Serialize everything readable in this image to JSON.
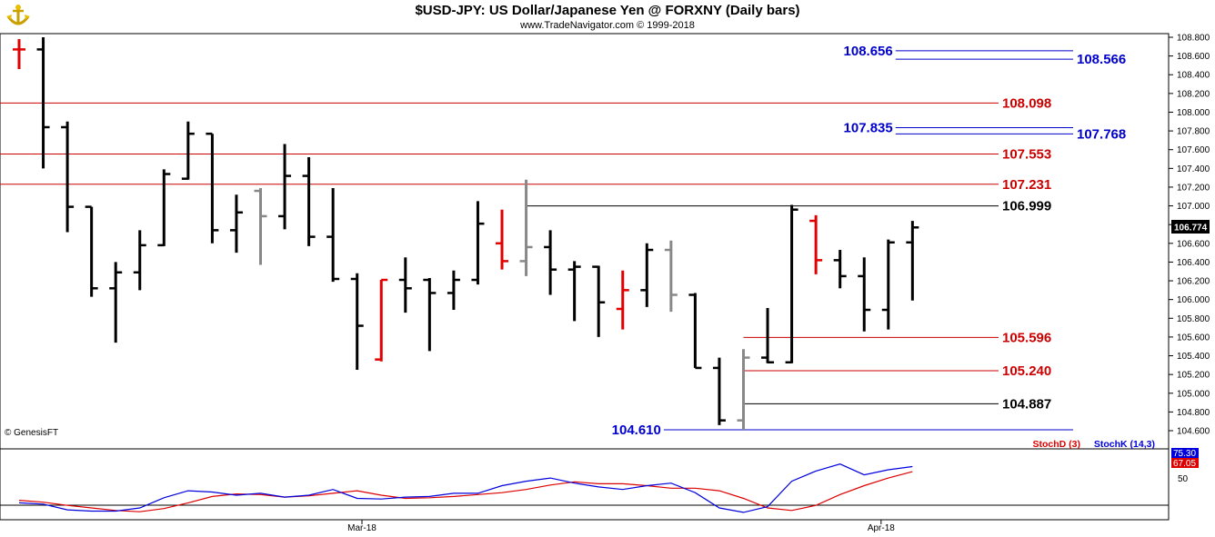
{
  "header": {
    "title": "$USD-JPY:  US Dollar/Japanese Yen @ FORXNY  (Daily bars)",
    "subtitle": "www.TradeNavigator.com © 1999-2018"
  },
  "copyright": "© GenesisFT",
  "colors": {
    "bar_black": "#000000",
    "bar_red": "#e00000",
    "bar_gray": "#888888",
    "level_red": "#cc0000",
    "level_blue": "#0000cc",
    "level_black": "#000000",
    "stoch_d": "#dd0000",
    "stoch_k": "#0000dd"
  },
  "chart_data": [
    {
      "type": "ohlc",
      "title": "$USD-JPY:  US Dollar/Japanese Yen @ FORXNY  (Daily bars)",
      "ylim": [
        104.48,
        108.9
      ],
      "y_ticks": [
        "108.800",
        "108.600",
        "108.400",
        "108.200",
        "108.000",
        "107.800",
        "107.600",
        "107.400",
        "107.200",
        "107.000",
        "106.800",
        "106.600",
        "106.400",
        "106.200",
        "106.000",
        "105.800",
        "105.600",
        "105.400",
        "105.200",
        "105.000",
        "104.800",
        "104.600"
      ],
      "x_labels": [
        "Mar-18",
        "Apr-18"
      ],
      "last_price": "106.774",
      "bars": [
        {
          "o": 108.67,
          "h": 108.78,
          "l": 108.46,
          "c": 108.67,
          "color": "red"
        },
        {
          "o": 108.67,
          "h": 108.8,
          "l": 107.4,
          "c": 107.84,
          "color": "black"
        },
        {
          "o": 107.84,
          "h": 107.9,
          "l": 106.72,
          "c": 106.99,
          "color": "black"
        },
        {
          "o": 106.99,
          "h": 106.99,
          "l": 106.03,
          "c": 106.12,
          "color": "black"
        },
        {
          "o": 106.12,
          "h": 106.4,
          "l": 105.54,
          "c": 106.29,
          "color": "black"
        },
        {
          "o": 106.29,
          "h": 106.74,
          "l": 106.1,
          "c": 106.58,
          "color": "black"
        },
        {
          "o": 106.58,
          "h": 107.39,
          "l": 106.57,
          "c": 107.34,
          "color": "black"
        },
        {
          "o": 107.29,
          "h": 107.9,
          "l": 107.28,
          "c": 107.77,
          "color": "black"
        },
        {
          "o": 107.77,
          "h": 107.77,
          "l": 106.6,
          "c": 106.74,
          "color": "black"
        },
        {
          "o": 106.74,
          "h": 107.12,
          "l": 106.5,
          "c": 106.93,
          "color": "black"
        },
        {
          "o": 107.16,
          "h": 107.19,
          "l": 106.37,
          "c": 106.89,
          "color": "gray"
        },
        {
          "o": 106.89,
          "h": 107.66,
          "l": 106.75,
          "c": 107.32,
          "color": "black"
        },
        {
          "o": 107.32,
          "h": 107.52,
          "l": 106.57,
          "c": 106.67,
          "color": "black"
        },
        {
          "o": 106.67,
          "h": 107.19,
          "l": 106.19,
          "c": 106.22,
          "color": "black"
        },
        {
          "o": 106.22,
          "h": 106.28,
          "l": 105.25,
          "c": 105.72,
          "color": "black"
        },
        {
          "o": 105.36,
          "h": 106.21,
          "l": 105.34,
          "c": 106.21,
          "color": "red"
        },
        {
          "o": 106.21,
          "h": 106.45,
          "l": 105.86,
          "c": 106.12,
          "color": "black"
        },
        {
          "o": 106.21,
          "h": 106.23,
          "l": 105.45,
          "c": 106.07,
          "color": "black"
        },
        {
          "o": 106.07,
          "h": 106.31,
          "l": 105.89,
          "c": 106.21,
          "color": "black"
        },
        {
          "o": 106.21,
          "h": 107.05,
          "l": 106.16,
          "c": 106.81,
          "color": "black"
        },
        {
          "o": 106.6,
          "h": 106.96,
          "l": 106.32,
          "c": 106.41,
          "color": "red"
        },
        {
          "o": 106.41,
          "h": 107.28,
          "l": 106.25,
          "c": 106.56,
          "color": "gray"
        },
        {
          "o": 106.56,
          "h": 106.74,
          "l": 106.05,
          "c": 106.32,
          "color": "black"
        },
        {
          "o": 106.32,
          "h": 106.41,
          "l": 105.77,
          "c": 106.35,
          "color": "black"
        },
        {
          "o": 106.35,
          "h": 106.36,
          "l": 105.6,
          "c": 105.97,
          "color": "black"
        },
        {
          "o": 105.9,
          "h": 106.31,
          "l": 105.68,
          "c": 106.1,
          "color": "red"
        },
        {
          "o": 106.1,
          "h": 106.6,
          "l": 105.92,
          "c": 106.53,
          "color": "black"
        },
        {
          "o": 106.53,
          "h": 106.63,
          "l": 105.87,
          "c": 106.05,
          "color": "gray"
        },
        {
          "o": 106.05,
          "h": 106.07,
          "l": 105.27,
          "c": 105.27,
          "color": "black"
        },
        {
          "o": 105.27,
          "h": 105.38,
          "l": 104.66,
          "c": 104.71,
          "color": "black"
        },
        {
          "o": 104.71,
          "h": 105.47,
          "l": 104.61,
          "c": 105.38,
          "color": "gray"
        },
        {
          "o": 105.38,
          "h": 105.91,
          "l": 105.32,
          "c": 105.33,
          "color": "black"
        },
        {
          "o": 105.33,
          "h": 107.01,
          "l": 105.32,
          "c": 106.96,
          "color": "black"
        },
        {
          "o": 106.84,
          "h": 106.9,
          "l": 106.27,
          "c": 106.42,
          "color": "red"
        },
        {
          "o": 106.42,
          "h": 106.53,
          "l": 106.12,
          "c": 106.25,
          "color": "black"
        },
        {
          "o": 106.25,
          "h": 106.45,
          "l": 105.66,
          "c": 105.89,
          "color": "black"
        },
        {
          "o": 105.89,
          "h": 106.64,
          "l": 105.68,
          "c": 106.61,
          "color": "black"
        },
        {
          "o": 106.61,
          "h": 106.84,
          "l": 105.99,
          "c": 106.77,
          "color": "black"
        }
      ],
      "levels": [
        {
          "value": 108.656,
          "label": "108.656",
          "color": "blue",
          "side": "left",
          "x0_bar": 36.3
        },
        {
          "value": 108.566,
          "label": "108.566",
          "color": "blue",
          "side": "right",
          "x0_bar": 36.3
        },
        {
          "value": 108.098,
          "label": "108.098",
          "color": "red",
          "side": "right",
          "x0_bar": -1
        },
        {
          "value": 107.835,
          "label": "107.835",
          "color": "blue",
          "side": "left",
          "x0_bar": 36.3
        },
        {
          "value": 107.768,
          "label": "107.768",
          "color": "blue",
          "side": "right",
          "x0_bar": 36.3
        },
        {
          "value": 107.553,
          "label": "107.553",
          "color": "red",
          "side": "right",
          "x0_bar": -1
        },
        {
          "value": 107.231,
          "label": "107.231",
          "color": "red",
          "side": "right",
          "x0_bar": -1
        },
        {
          "value": 106.999,
          "label": "106.999",
          "color": "black",
          "side": "right",
          "x0_bar": 21
        },
        {
          "value": 105.596,
          "label": "105.596",
          "color": "red",
          "side": "right",
          "x0_bar": 30
        },
        {
          "value": 105.24,
          "label": "105.240",
          "color": "red",
          "side": "right",
          "x0_bar": 30
        },
        {
          "value": 104.887,
          "label": "104.887",
          "color": "black",
          "side": "right",
          "x0_bar": 30
        },
        {
          "value": 104.61,
          "label": "104.610",
          "color": "blue",
          "side": "left",
          "x0_bar": 26.7
        }
      ]
    },
    {
      "type": "line",
      "ylim": [
        0,
        100
      ],
      "y_ticks": [
        "50"
      ],
      "last_values": {
        "k": "75.30",
        "d": "67.05"
      },
      "series": [
        {
          "name": "StochD (3)",
          "color": "#dd0000",
          "values": [
            22,
            19,
            14,
            10,
            6,
            4,
            9,
            18,
            28,
            32,
            31,
            27,
            29,
            33,
            37,
            30,
            25,
            26,
            28,
            31,
            34,
            39,
            46,
            51,
            48,
            48,
            45,
            41,
            41,
            37,
            25,
            10,
            6,
            14,
            31,
            45,
            57,
            67
          ]
        },
        {
          "name": "StochK (14,3)",
          "color": "#0000dd",
          "values": [
            18,
            16,
            7,
            5,
            5,
            10,
            26,
            37,
            35,
            30,
            33,
            27,
            30,
            39,
            25,
            24,
            27,
            28,
            33,
            33,
            45,
            52,
            57,
            49,
            43,
            39,
            45,
            49,
            34,
            10,
            3,
            12,
            52,
            68,
            79,
            62,
            70,
            75
          ]
        }
      ]
    }
  ]
}
